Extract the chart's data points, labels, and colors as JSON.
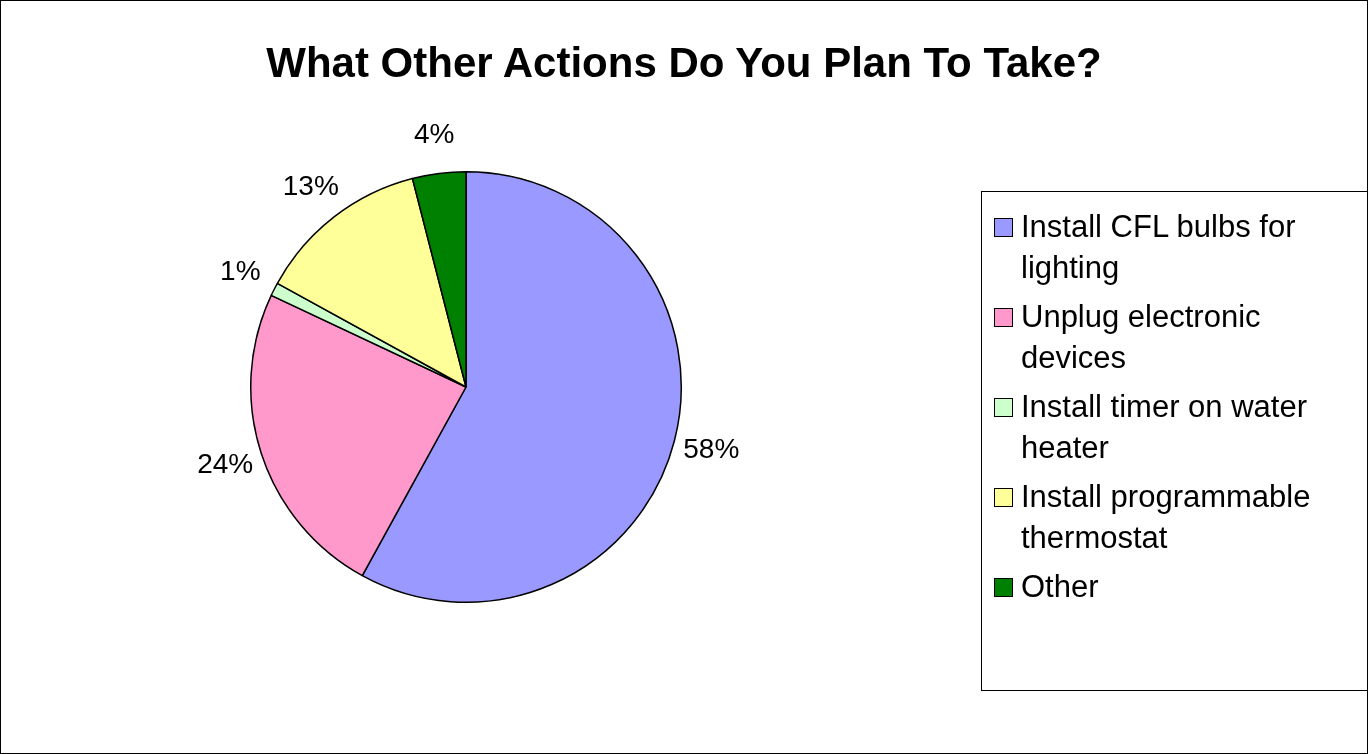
{
  "chart_data": {
    "type": "pie",
    "title": "What Other Actions Do You Plan To Take?",
    "categories": [
      "Install CFL bulbs for lighting",
      "Unplug electronic devices",
      "Install timer on water heater",
      "Install programmable thermostat",
      "Other"
    ],
    "values": [
      58,
      24,
      1,
      13,
      4
    ],
    "colors": [
      "#9999ff",
      "#ff99cc",
      "#ccffcc",
      "#ffff99",
      "#008000"
    ],
    "value_labels": [
      "58%",
      "24%",
      "1%",
      "13%",
      "4%"
    ],
    "legend": "right"
  }
}
